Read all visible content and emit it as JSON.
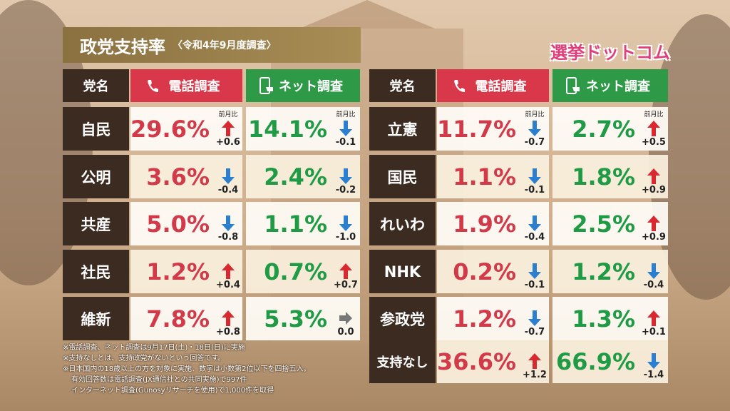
{
  "header": {
    "title": "政党支持率",
    "subtitle": "〈令和4年9月度調査〉",
    "logo": "選挙ドットコム"
  },
  "tables": [
    {
      "columns": [
        "党名",
        "電話調査",
        "ネット調査"
      ],
      "change_label": "前月比",
      "rows": [
        {
          "party": "自民",
          "phone": "29.6%",
          "phone_change": "+0.6",
          "net": "14.1%",
          "net_change": "-0.1"
        },
        {
          "party": "公明",
          "phone": "3.6%",
          "phone_change": "-0.4",
          "net": "2.4%",
          "net_change": "-0.2"
        },
        {
          "party": "共産",
          "phone": "5.0%",
          "phone_change": "-0.8",
          "net": "1.1%",
          "net_change": "-1.0"
        },
        {
          "party": "社民",
          "phone": "1.2%",
          "phone_change": "+0.4",
          "net": "0.7%",
          "net_change": "+0.7"
        },
        {
          "party": "維新",
          "phone": "7.8%",
          "phone_change": "+0.8",
          "net": "5.3%",
          "net_change": "0.0"
        }
      ]
    },
    {
      "columns": [
        "党名",
        "電話調査",
        "ネット調査"
      ],
      "change_label": "前月比",
      "rows": [
        {
          "party": "立憲",
          "phone": "11.7%",
          "phone_change": "-0.7",
          "net": "2.7%",
          "net_change": "+0.5"
        },
        {
          "party": "国民",
          "phone": "1.1%",
          "phone_change": "-0.1",
          "net": "1.8%",
          "net_change": "+0.9"
        },
        {
          "party": "れいわ",
          "phone": "1.9%",
          "phone_change": "-0.4",
          "net": "2.5%",
          "net_change": "+0.9"
        },
        {
          "party": "NHK",
          "phone": "0.2%",
          "phone_change": "-0.1",
          "net": "1.2%",
          "net_change": "-0.4"
        },
        {
          "party": "参政党",
          "phone": "1.2%",
          "phone_change": "-0.7",
          "net": "1.3%",
          "net_change": "+0.1"
        },
        {
          "party": "支持なし",
          "phone": "36.6%",
          "phone_change": "+1.2",
          "net": "66.9%",
          "net_change": "-1.4"
        }
      ]
    }
  ],
  "notes": [
    "※電話調査、ネット調査は9月17日(土)・18日(日)に実施",
    "※支持なしとは、支持政党がないという回答です。",
    "※日本国内の18歳以上の方を対象に実施、数字は小数第2位以下を四捨五入。",
    "有効回答数は電話調査(JX通信社との共同実施)で997件",
    "インターネット調査(Gunosyリサーチを使用)で1,000件を取得"
  ]
}
